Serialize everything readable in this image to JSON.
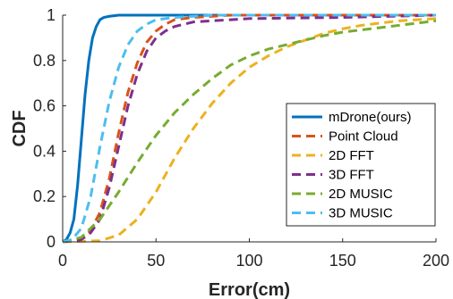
{
  "chart_data": {
    "type": "line",
    "title": "",
    "xlabel": "Error(cm)",
    "ylabel": "CDF",
    "xlim": [
      0,
      200
    ],
    "ylim": [
      0,
      1
    ],
    "xticks": [
      0,
      50,
      100,
      150,
      200
    ],
    "yticks": [
      0,
      0.2,
      0.4,
      0.6,
      0.8,
      1
    ],
    "xtick_labels": [
      "0",
      "50",
      "100",
      "150",
      "200"
    ],
    "ytick_labels": [
      "0",
      "0.2",
      "0.4",
      "0.6",
      "0.8",
      "1"
    ],
    "grid": false,
    "legend_position": "bottom-right",
    "series": [
      {
        "name": "mDrone(ours)",
        "color": "#0072BD",
        "dashed": false,
        "points": [
          [
            0,
            0
          ],
          [
            2,
            0.01
          ],
          [
            4,
            0.04
          ],
          [
            6,
            0.1
          ],
          [
            8,
            0.25
          ],
          [
            10,
            0.45
          ],
          [
            12,
            0.65
          ],
          [
            14,
            0.8
          ],
          [
            16,
            0.9
          ],
          [
            18,
            0.95
          ],
          [
            20,
            0.98
          ],
          [
            22,
            0.99
          ],
          [
            25,
            0.995
          ],
          [
            30,
            1
          ],
          [
            200,
            1
          ]
        ]
      },
      {
        "name": "Point Cloud",
        "color": "#D95319",
        "dashed": true,
        "points": [
          [
            0,
            0
          ],
          [
            10,
            0.01
          ],
          [
            15,
            0.05
          ],
          [
            20,
            0.13
          ],
          [
            25,
            0.28
          ],
          [
            30,
            0.48
          ],
          [
            35,
            0.66
          ],
          [
            40,
            0.79
          ],
          [
            45,
            0.88
          ],
          [
            50,
            0.93
          ],
          [
            55,
            0.96
          ],
          [
            60,
            0.98
          ],
          [
            70,
            0.99
          ],
          [
            90,
            1
          ],
          [
            200,
            1
          ]
        ]
      },
      {
        "name": "2D FFT",
        "color": "#EDB120",
        "dashed": true,
        "points": [
          [
            0,
            0
          ],
          [
            20,
            0.005
          ],
          [
            30,
            0.03
          ],
          [
            40,
            0.1
          ],
          [
            50,
            0.22
          ],
          [
            60,
            0.37
          ],
          [
            70,
            0.5
          ],
          [
            80,
            0.61
          ],
          [
            90,
            0.7
          ],
          [
            100,
            0.77
          ],
          [
            110,
            0.82
          ],
          [
            120,
            0.86
          ],
          [
            130,
            0.89
          ],
          [
            140,
            0.92
          ],
          [
            150,
            0.94
          ],
          [
            160,
            0.955
          ],
          [
            170,
            0.965
          ],
          [
            180,
            0.975
          ],
          [
            190,
            0.98
          ],
          [
            200,
            0.985
          ]
        ]
      },
      {
        "name": "3D FFT",
        "color": "#7E2F8E",
        "dashed": true,
        "points": [
          [
            0,
            0
          ],
          [
            10,
            0.01
          ],
          [
            15,
            0.04
          ],
          [
            20,
            0.1
          ],
          [
            25,
            0.24
          ],
          [
            30,
            0.42
          ],
          [
            35,
            0.6
          ],
          [
            40,
            0.74
          ],
          [
            45,
            0.84
          ],
          [
            50,
            0.9
          ],
          [
            55,
            0.93
          ],
          [
            60,
            0.95
          ],
          [
            70,
            0.97
          ],
          [
            80,
            0.975
          ],
          [
            100,
            0.985
          ],
          [
            150,
            0.99
          ],
          [
            200,
            1
          ]
        ]
      },
      {
        "name": "2D MUSIC",
        "color": "#77AC30",
        "dashed": true,
        "points": [
          [
            0,
            0
          ],
          [
            10,
            0.02
          ],
          [
            20,
            0.1
          ],
          [
            30,
            0.22
          ],
          [
            40,
            0.35
          ],
          [
            50,
            0.47
          ],
          [
            60,
            0.57
          ],
          [
            70,
            0.65
          ],
          [
            80,
            0.72
          ],
          [
            90,
            0.78
          ],
          [
            100,
            0.82
          ],
          [
            110,
            0.85
          ],
          [
            120,
            0.87
          ],
          [
            130,
            0.89
          ],
          [
            140,
            0.91
          ],
          [
            150,
            0.925
          ],
          [
            160,
            0.935
          ],
          [
            170,
            0.945
          ],
          [
            180,
            0.955
          ],
          [
            190,
            0.965
          ],
          [
            200,
            0.975
          ]
        ]
      },
      {
        "name": "3D MUSIC",
        "color": "#4DBEEE",
        "dashed": true,
        "points": [
          [
            0,
            0
          ],
          [
            5,
            0.01
          ],
          [
            10,
            0.06
          ],
          [
            15,
            0.2
          ],
          [
            20,
            0.42
          ],
          [
            25,
            0.62
          ],
          [
            30,
            0.77
          ],
          [
            35,
            0.87
          ],
          [
            40,
            0.93
          ],
          [
            45,
            0.96
          ],
          [
            50,
            0.98
          ],
          [
            60,
            0.99
          ],
          [
            80,
            1
          ],
          [
            200,
            1
          ]
        ]
      }
    ]
  }
}
